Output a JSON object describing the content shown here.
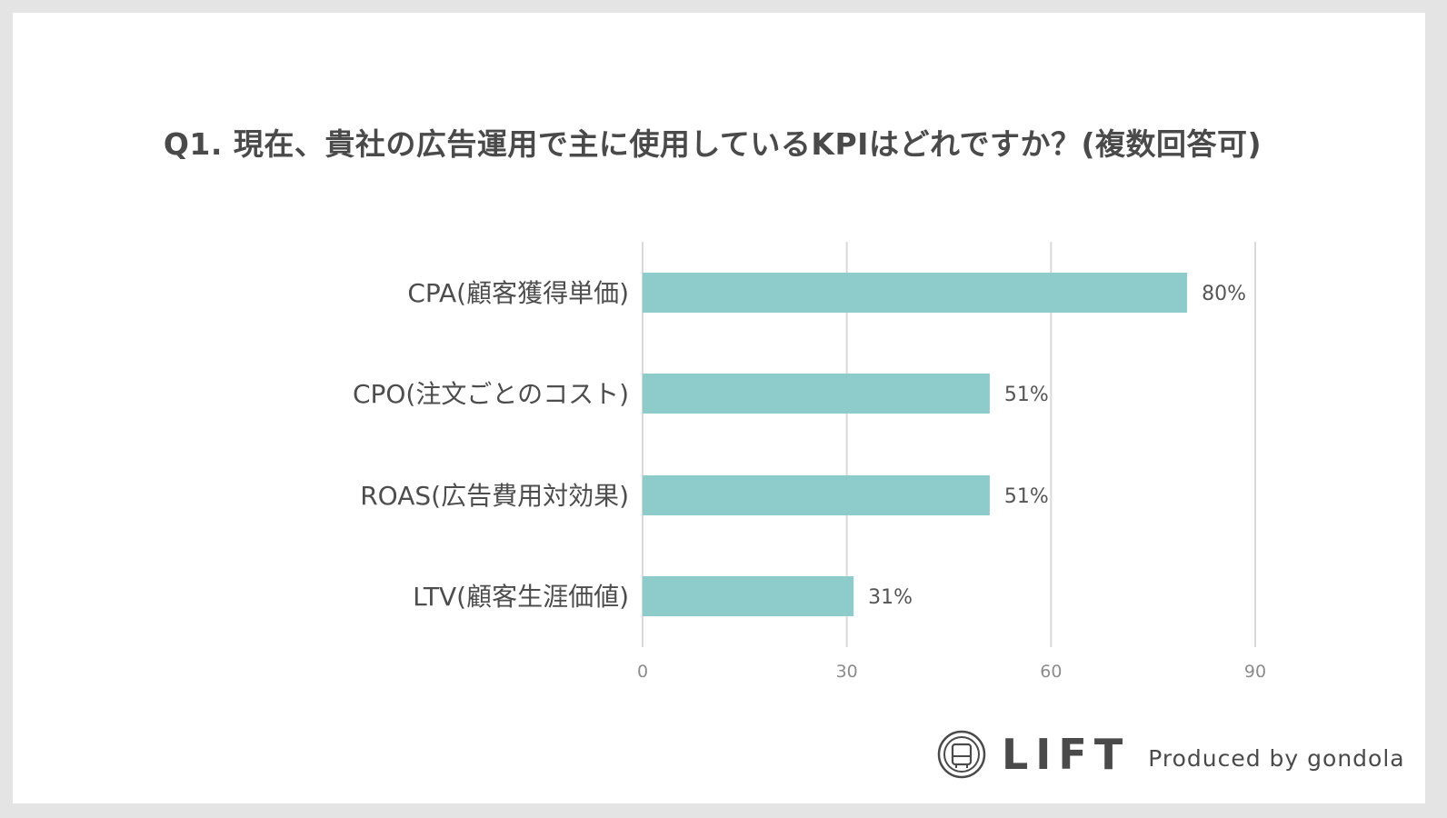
{
  "chart_data": {
    "type": "bar",
    "orientation": "horizontal",
    "title": "Q1. 現在、貴社の広告運用で主に使用しているKPIはどれですか？(複数回答可)",
    "categories": [
      "CPA(顧客獲得単価)",
      "CPO(注文ごとのコスト)",
      "ROAS(広告費用対効果)",
      "LTV(顧客生涯価値)"
    ],
    "values": [
      80,
      51,
      51,
      31
    ],
    "value_labels": [
      "80%",
      "51%",
      "51%",
      "31%"
    ],
    "xlim": [
      0,
      90
    ],
    "xticks": [
      0,
      30,
      60,
      90
    ],
    "tick_labels": [
      "0",
      "30",
      "60",
      "90"
    ],
    "grid": true,
    "bar_color": "#8ecccc"
  },
  "branding": {
    "logo_text": "LIFT",
    "produced_by": "Produced by gondola"
  }
}
